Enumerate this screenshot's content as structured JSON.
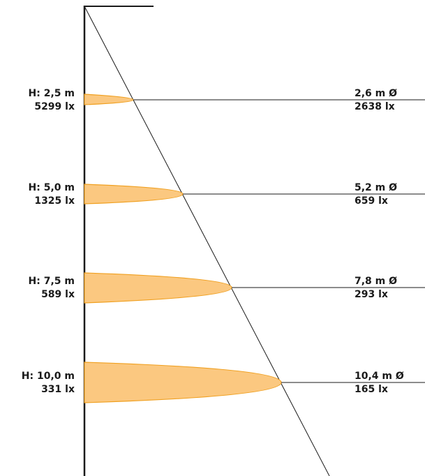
{
  "colors": {
    "ellipse_fill": "#fbc880",
    "ellipse_stroke": "#f0a020",
    "line": "#1a1a1a"
  },
  "levels": [
    {
      "height_label": "H: 2,5 m",
      "center_lux_label": "5299 lx",
      "diameter_label": "2,6 m Ø",
      "edge_lux_label": "2638 lx"
    },
    {
      "height_label": "H: 5,0 m",
      "center_lux_label": "1325 lx",
      "diameter_label": "5,2 m Ø",
      "edge_lux_label": "659 lx"
    },
    {
      "height_label": "H: 7,5 m",
      "center_lux_label": "589 lx",
      "diameter_label": "7,8 m Ø",
      "edge_lux_label": "293 lx"
    },
    {
      "height_label": "H: 10,0 m",
      "center_lux_label": "331 lx",
      "diameter_label": "10,4 m Ø",
      "edge_lux_label": "165 lx"
    }
  ]
}
